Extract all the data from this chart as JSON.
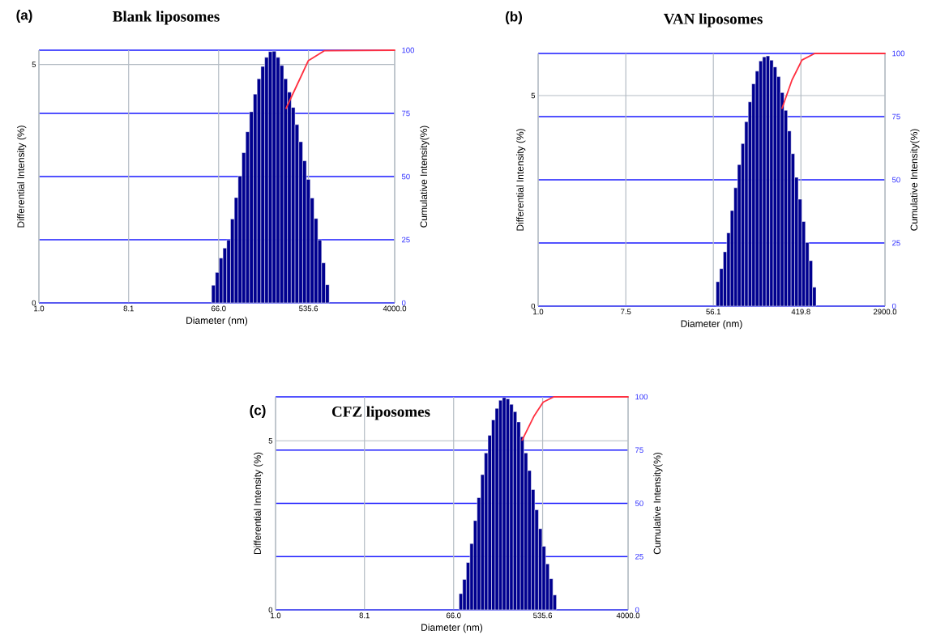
{
  "chart_data": [
    {
      "type": "histogram",
      "title": "Blank liposomes",
      "annotations": [
        "(a)"
      ],
      "xlabel": "Diameter (nm)",
      "ylabel": "Differential Intensity (%)",
      "y2label": "Cumulative Intensity(%)",
      "log": "x",
      "grid": true,
      "xlim": [
        1,
        4000
      ],
      "ylim": [
        0,
        5.3
      ],
      "y2lim": [
        0,
        100
      ],
      "xticks": [
        {
          "value": 1,
          "label": "1.0"
        },
        8.1,
        {
          "value": 66,
          "label": "66.0"
        },
        535.6,
        {
          "value": 4000,
          "label": "4000.0"
        }
      ],
      "yticks": [
        0,
        5
      ],
      "y2ticks": [
        0,
        25,
        50,
        75,
        100
      ],
      "bins": [
        56,
        61.2,
        66.8,
        73.0,
        79.8,
        87.1,
        95.2,
        104,
        113.6,
        124.1,
        135.6,
        148.1,
        161.8,
        176.8,
        193.2,
        211.0,
        230.5,
        251.9,
        275.2,
        300.6,
        328.4,
        358.8,
        392.0,
        428.3,
        467.9,
        511.2,
        558.4,
        610.1,
        666.5,
        728.2,
        795.5,
        869
      ],
      "series": [
        {
          "color": "#00008f",
          "values": [
            0.37,
            0.64,
            0.94,
            1.15,
            1.32,
            1.76,
            2.21,
            2.66,
            3.15,
            3.59,
            4.01,
            4.38,
            4.7,
            4.96,
            5.15,
            5.27,
            5.28,
            5.15,
            4.98,
            4.7,
            4.42,
            4.1,
            3.74,
            3.38,
            2.98,
            2.59,
            2.2,
            1.77,
            1.32,
            0.84,
            0.38
          ]
        },
        {
          "type": "line",
          "axis": "y2",
          "color": "#ff3040",
          "x": [
            318,
            449,
            533,
            780,
            4000
          ],
          "values": [
            77,
            89.5,
            95.8,
            99.8,
            100
          ]
        }
      ]
    },
    {
      "type": "histogram",
      "title": "VAN liposomes",
      "annotations": [
        "(b)"
      ],
      "xlabel": "Diameter (nm)",
      "ylabel": "Differential Intensity (%)",
      "y2label": "Cumulative Intensity(%)",
      "log": "x",
      "grid": true,
      "xlim": [
        1,
        2900
      ],
      "ylim": [
        0,
        6.0
      ],
      "y2lim": [
        0,
        100
      ],
      "xticks": [
        {
          "value": 1,
          "label": "1.0"
        },
        7.5,
        56.1,
        419.8,
        {
          "value": 2900,
          "label": "2900.0"
        }
      ],
      "yticks": [
        0,
        5
      ],
      "y2ticks": [
        0,
        25,
        50,
        75,
        100
      ],
      "bins": [
        59.7,
        64.8,
        70.4,
        76.4,
        82.9,
        90.0,
        97.7,
        106.1,
        115.2,
        125.0,
        135.7,
        147.4,
        160.0,
        173.7,
        188.5,
        204.7,
        222.2,
        241.2,
        261.9,
        284.3,
        308.6,
        335.1,
        363.8,
        394.9,
        428.7,
        465.4,
        505.2,
        548.5,
        595.4
      ],
      "series": [
        {
          "color": "#00008f",
          "values": [
            0.58,
            0.89,
            1.29,
            1.74,
            2.27,
            2.81,
            3.36,
            3.86,
            4.38,
            4.85,
            5.28,
            5.58,
            5.82,
            5.92,
            5.94,
            5.84,
            5.68,
            5.45,
            5.07,
            4.65,
            4.16,
            3.62,
            3.06,
            2.54,
            2.01,
            1.51,
            1.08,
            0.45
          ]
        },
        {
          "type": "line",
          "axis": "y2",
          "color": "#ff3040",
          "x": [
            272,
            342,
            430,
            577,
            2900
          ],
          "values": [
            78.3,
            89.5,
            97.4,
            100,
            100
          ]
        }
      ]
    },
    {
      "type": "histogram",
      "title": "CFZ liposomes",
      "annotations": [
        "(c)"
      ],
      "xlabel": "Diameter (nm)",
      "ylabel": "Differential Intensity (%)",
      "y2label": "Cumulative Intensity(%)",
      "log": "x",
      "grid": true,
      "xlim": [
        1,
        4000
      ],
      "ylim": [
        0,
        6.3
      ],
      "y2lim": [
        0,
        100
      ],
      "xticks": [
        {
          "value": 1,
          "label": "1.0"
        },
        8.1,
        {
          "value": 66,
          "label": "66.0"
        },
        535.6,
        {
          "value": 4000,
          "label": "4000.0"
        }
      ],
      "yticks": [
        0,
        5
      ],
      "y2ticks": [
        0,
        25,
        50,
        75,
        100
      ],
      "bins": [
        75.0,
        81.6,
        88.9,
        96.8,
        105.3,
        114.7,
        124.8,
        135.9,
        147.9,
        161.0,
        175.3,
        190.8,
        207.7,
        226.1,
        246.2,
        268.0,
        291.7,
        317.6,
        345.7,
        376.3,
        409.7,
        446.0,
        485.5,
        528.5,
        575.3,
        626.3,
        681.8,
        742.2
      ],
      "series": [
        {
          "color": "#00008f",
          "values": [
            0.48,
            0.9,
            1.4,
            1.96,
            2.64,
            3.32,
            4.0,
            4.64,
            5.16,
            5.62,
            5.96,
            6.2,
            6.28,
            6.24,
            6.08,
            5.86,
            5.56,
            5.12,
            4.64,
            4.12,
            3.56,
            2.96,
            2.4,
            1.88,
            1.36,
            0.92,
            0.44
          ]
        },
        {
          "type": "line",
          "axis": "y2",
          "color": "#ff3040",
          "x": [
            331,
            439,
            543,
            697,
            4000
          ],
          "values": [
            79.7,
            91.1,
            97.5,
            100,
            100
          ]
        }
      ]
    }
  ]
}
